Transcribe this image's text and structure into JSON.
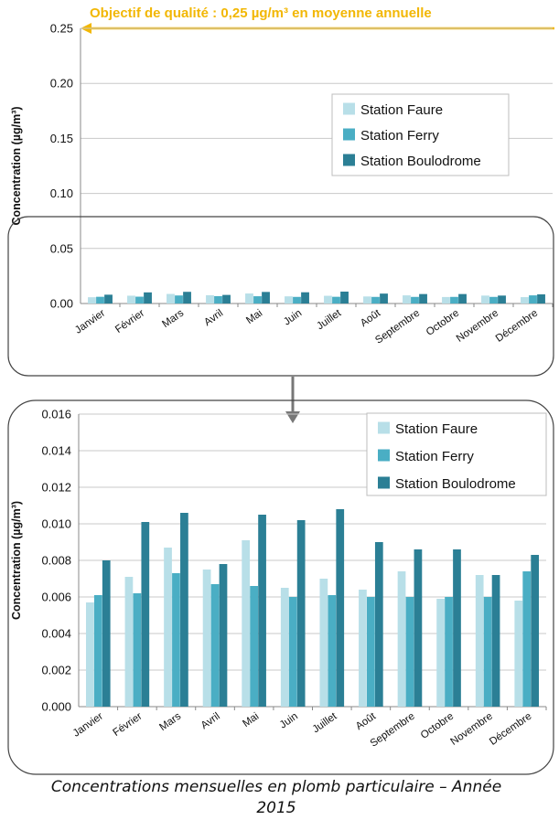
{
  "banner": "Objectif de qualité : 0,25 µg/m³ en moyenne annuelle",
  "caption": {
    "line1": "Concentrations mensuelles en plomb particulaire – Année",
    "line2": "2015"
  },
  "colors": {
    "faure": "#b8dfe8",
    "ferry": "#4aaec4",
    "boulodrome": "#2b7f95",
    "banner": "#f2b705",
    "grid": "#c8c8c8",
    "axis": "#888888"
  },
  "chart_data": [
    {
      "type": "bar",
      "ylabel": "Concentration (µg/m³)",
      "ylim": [
        0,
        0.25
      ],
      "yticks": [
        "0.00",
        "0.05",
        "0.10",
        "0.15",
        "0.20",
        "0.25"
      ],
      "grid": true,
      "legend": "upper-right",
      "categories": [
        "Janvier",
        "Février",
        "Mars",
        "Avril",
        "Mai",
        "Juin",
        "Juillet",
        "Août",
        "Septembre",
        "Octobre",
        "Novembre",
        "Décembre"
      ],
      "series": [
        {
          "name": "Station Faure",
          "values": [
            0.0057,
            0.0071,
            0.0087,
            0.0075,
            0.0091,
            0.0065,
            0.007,
            0.0064,
            0.0074,
            0.0059,
            0.0072,
            0.0058
          ]
        },
        {
          "name": "Station Ferry",
          "values": [
            0.0061,
            0.0062,
            0.0073,
            0.0067,
            0.0066,
            0.006,
            0.0061,
            0.006,
            0.006,
            0.006,
            0.006,
            0.0074
          ]
        },
        {
          "name": "Station Boulodrome",
          "values": [
            0.008,
            0.0101,
            0.0106,
            0.0078,
            0.0105,
            0.0102,
            0.0108,
            0.009,
            0.0086,
            0.0086,
            0.0072,
            0.0083
          ]
        }
      ],
      "annotation": "Objectif de qualité : 0,25 µg/m³ en moyenne annuelle"
    },
    {
      "type": "bar",
      "ylabel": "Concentration (µg/m³)",
      "ylim": [
        0,
        0.016
      ],
      "yticks": [
        "0.000",
        "0.002",
        "0.004",
        "0.006",
        "0.008",
        "0.010",
        "0.012",
        "0.014",
        "0.016"
      ],
      "grid": true,
      "legend": "upper-right",
      "categories": [
        "Janvier",
        "Février",
        "Mars",
        "Avril",
        "Mai",
        "Juin",
        "Juillet",
        "Août",
        "Septembre",
        "Octobre",
        "Novembre",
        "Décembre"
      ],
      "series": [
        {
          "name": "Station Faure",
          "values": [
            0.0057,
            0.0071,
            0.0087,
            0.0075,
            0.0091,
            0.0065,
            0.007,
            0.0064,
            0.0074,
            0.0059,
            0.0072,
            0.0058
          ]
        },
        {
          "name": "Station Ferry",
          "values": [
            0.0061,
            0.0062,
            0.0073,
            0.0067,
            0.0066,
            0.006,
            0.0061,
            0.006,
            0.006,
            0.006,
            0.006,
            0.0074
          ]
        },
        {
          "name": "Station Boulodrome",
          "values": [
            0.008,
            0.0101,
            0.0106,
            0.0078,
            0.0105,
            0.0102,
            0.0108,
            0.009,
            0.0086,
            0.0086,
            0.0072,
            0.0083
          ]
        }
      ]
    }
  ]
}
